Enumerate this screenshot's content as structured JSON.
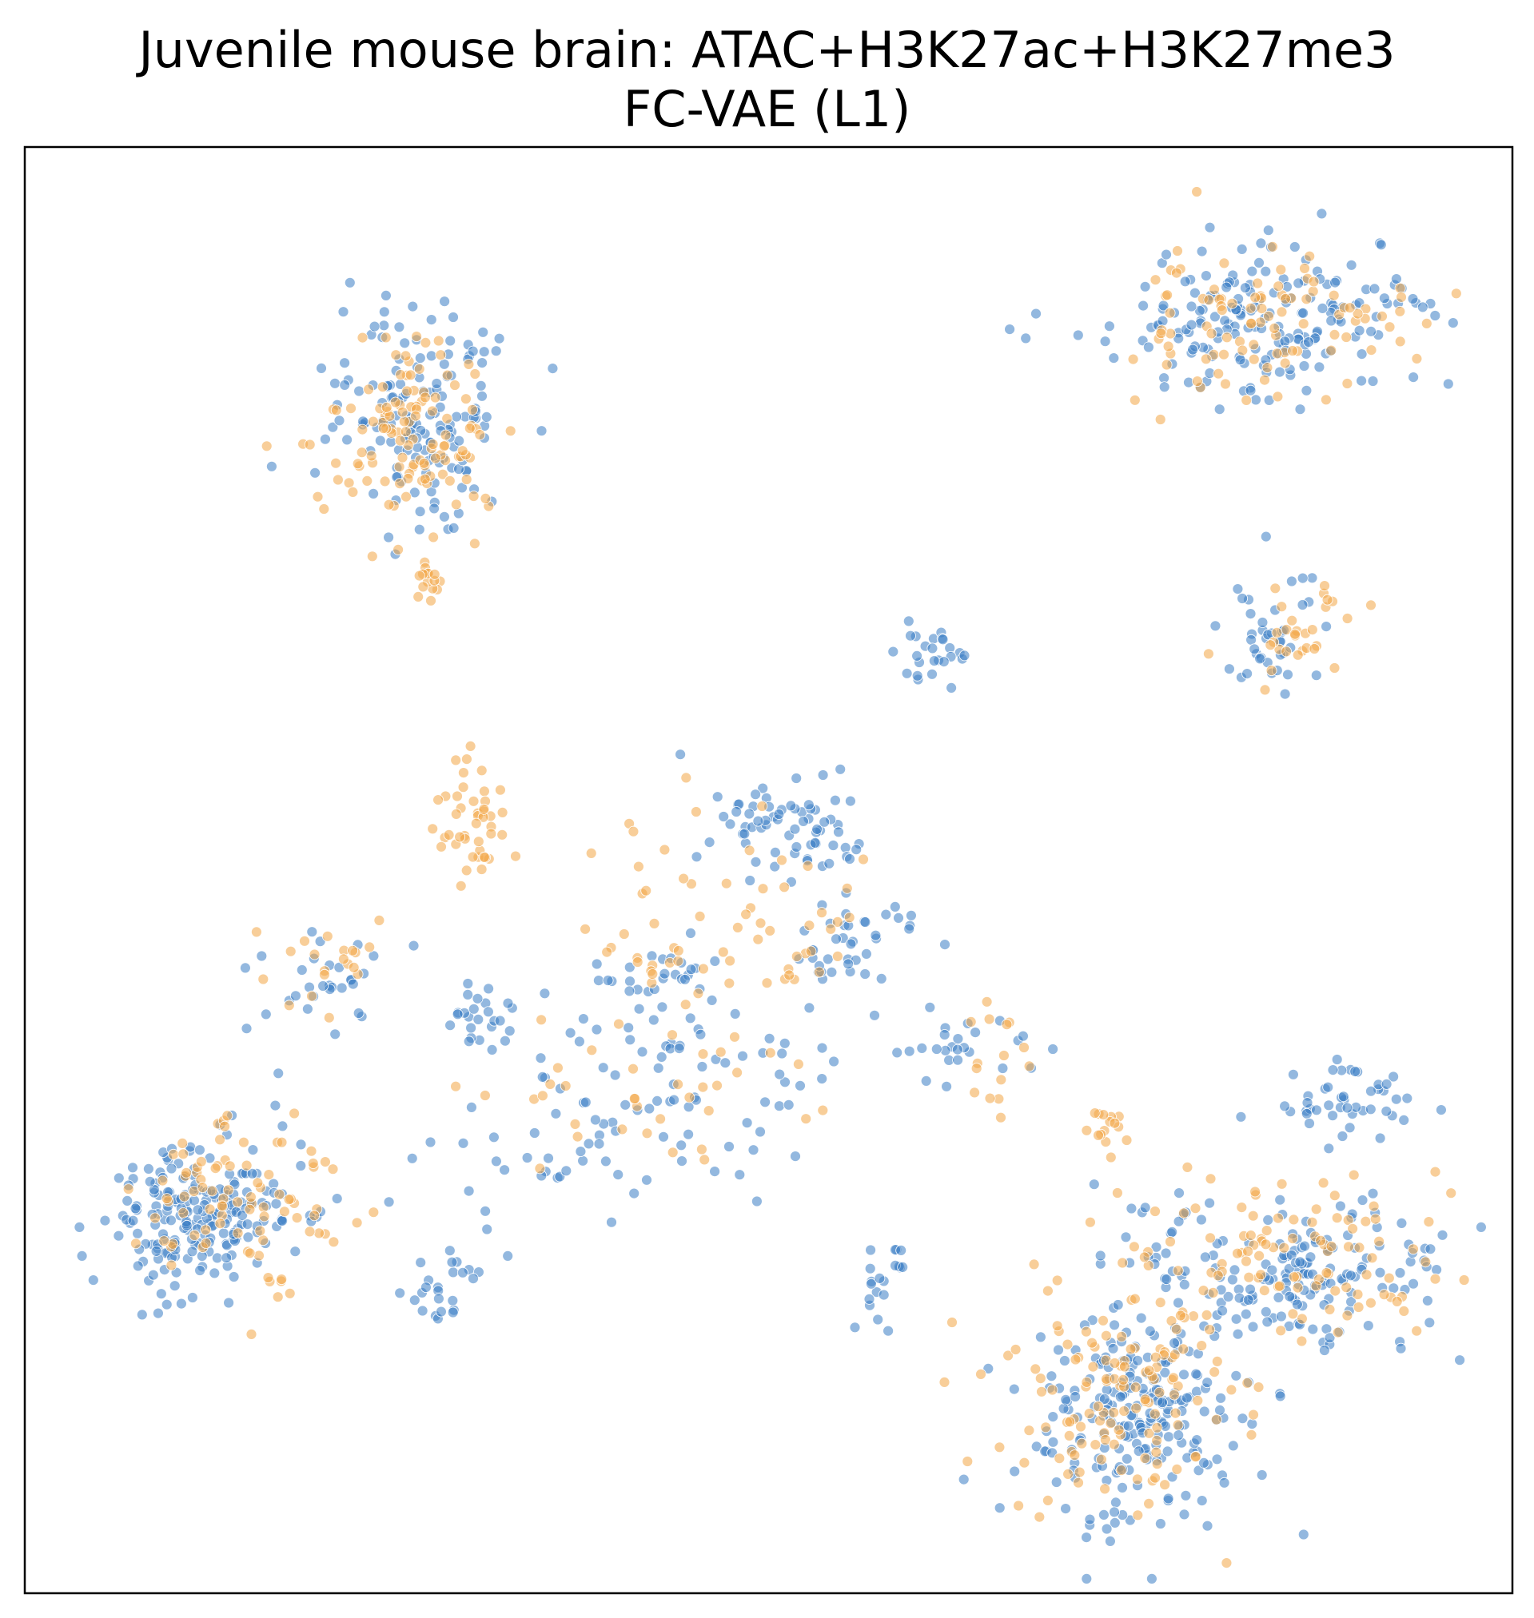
{
  "chart_data": {
    "type": "scatter",
    "title": [
      "Juvenile mouse brain: ATAC+H3K27ac+H3K27me3",
      "FC-VAE (L1)"
    ],
    "xlabel": "",
    "ylabel": "",
    "xlim": [
      0,
      100
    ],
    "ylim": [
      0,
      100
    ],
    "axes_ticks": false,
    "grid": false,
    "legend": "none",
    "series": [
      {
        "color": "#3b7dc4",
        "clusters": [
          {
            "center": [
              12,
              26
            ],
            "spread": [
              6,
              5
            ],
            "n": 210,
            "seed": 11
          },
          {
            "center": [
              75,
              12
            ],
            "spread": [
              7,
              7
            ],
            "n": 230,
            "seed": 12
          },
          {
            "center": [
              85,
              22
            ],
            "spread": [
              10,
              5
            ],
            "n": 170,
            "seed": 13
          },
          {
            "center": [
              84,
              88
            ],
            "spread": [
              10,
              5
            ],
            "n": 190,
            "seed": 14
          },
          {
            "center": [
              27,
              81
            ],
            "spread": [
              6,
              7
            ],
            "n": 150,
            "seed": 15
          },
          {
            "center": [
              51,
              53
            ],
            "spread": [
              5,
              3
            ],
            "n": 70,
            "seed": 16
          },
          {
            "center": [
              56,
              45
            ],
            "spread": [
              4,
              3
            ],
            "n": 40,
            "seed": 17
          },
          {
            "center": [
              88,
              34
            ],
            "spread": [
              5,
              2
            ],
            "n": 45,
            "seed": 18
          },
          {
            "center": [
              61,
              65
            ],
            "spread": [
              2,
              2
            ],
            "n": 25,
            "seed": 19
          },
          {
            "center": [
              84,
              66
            ],
            "spread": [
              3,
              5
            ],
            "n": 40,
            "seed": 20
          },
          {
            "center": [
              44,
              35
            ],
            "spread": [
              10,
              6
            ],
            "n": 80,
            "seed": 21
          },
          {
            "center": [
              20,
              43
            ],
            "spread": [
              5,
              3
            ],
            "n": 30,
            "seed": 22
          },
          {
            "center": [
              31,
              40
            ],
            "spread": [
              2,
              2
            ],
            "n": 25,
            "seed": 23
          },
          {
            "center": [
              42,
              43
            ],
            "spread": [
              4,
              2
            ],
            "n": 25,
            "seed": 24
          },
          {
            "center": [
              63,
              38
            ],
            "spread": [
              4,
              2
            ],
            "n": 25,
            "seed": 25
          },
          {
            "center": [
              58,
              22
            ],
            "spread": [
              2,
              3
            ],
            "n": 20,
            "seed": 26
          },
          {
            "center": [
              28,
              21
            ],
            "spread": [
              3,
              2
            ],
            "n": 25,
            "seed": 27
          },
          {
            "center": [
              36,
              29
            ],
            "spread": [
              9,
              4
            ],
            "n": 25,
            "seed": 28
          }
        ]
      },
      {
        "color": "#f2a646",
        "clusters": [
          {
            "center": [
              14,
              27
            ],
            "spread": [
              7,
              5
            ],
            "n": 90,
            "seed": 31
          },
          {
            "center": [
              74,
              13
            ],
            "spread": [
              8,
              7
            ],
            "n": 130,
            "seed": 32
          },
          {
            "center": [
              84,
              23
            ],
            "spread": [
              10,
              5
            ],
            "n": 110,
            "seed": 33
          },
          {
            "center": [
              83,
              88
            ],
            "spread": [
              10,
              5
            ],
            "n": 100,
            "seed": 34
          },
          {
            "center": [
              26,
              80
            ],
            "spread": [
              6,
              7
            ],
            "n": 120,
            "seed": 35
          },
          {
            "center": [
              30,
              53
            ],
            "spread": [
              2,
              3
            ],
            "n": 45,
            "seed": 36
          },
          {
            "center": [
              47,
              47
            ],
            "spread": [
              8,
              7
            ],
            "n": 60,
            "seed": 37
          },
          {
            "center": [
              20,
              44
            ],
            "spread": [
              5,
              3
            ],
            "n": 20,
            "seed": 38
          },
          {
            "center": [
              42,
              35
            ],
            "spread": [
              10,
              6
            ],
            "n": 40,
            "seed": 39
          },
          {
            "center": [
              85,
              66
            ],
            "spread": [
              4,
              4
            ],
            "n": 30,
            "seed": 40
          },
          {
            "center": [
              27,
              70
            ],
            "spread": [
              1,
              2
            ],
            "n": 15,
            "seed": 41
          },
          {
            "center": [
              72,
              32
            ],
            "spread": [
              2,
              2
            ],
            "n": 15,
            "seed": 42
          },
          {
            "center": [
              65,
              37
            ],
            "spread": [
              3,
              3
            ],
            "n": 15,
            "seed": 43
          }
        ]
      }
    ]
  }
}
